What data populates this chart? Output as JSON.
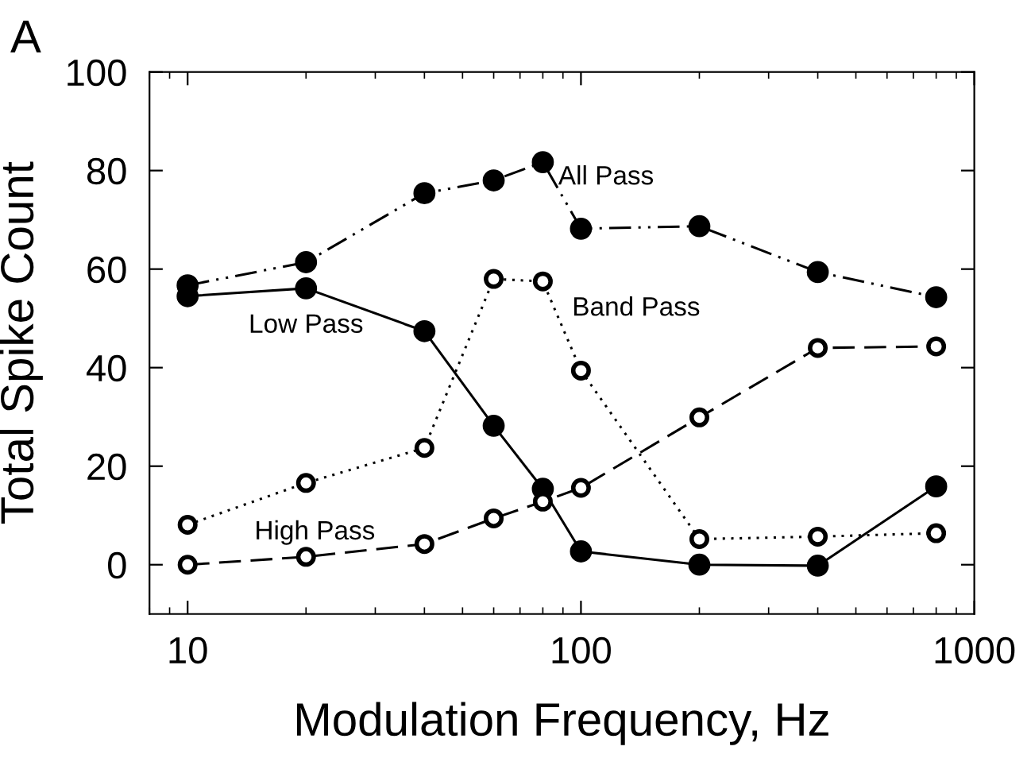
{
  "chart_data": {
    "type": "line",
    "xlabel": "Modulation Frequency, Hz",
    "ylabel": "Total Spike Count",
    "x": [
      10,
      20,
      40,
      60,
      80,
      100,
      200,
      400,
      800
    ],
    "series": [
      {
        "name": "All Pass",
        "color": "#000000",
        "line_style": "dashdot",
        "values": [
          56.7,
          61.4,
          75.4,
          78.0,
          81.7,
          68.2,
          68.7,
          59.4,
          54.3
        ]
      },
      {
        "name": "Low Pass",
        "color": "#000000",
        "line_style": "solid",
        "values": [
          54.5,
          56.1,
          47.4,
          28.2,
          15.4,
          2.7,
          0,
          -0.2,
          15.9
        ]
      },
      {
        "name": "Band Pass",
        "color": "#000000",
        "line_style": "dotted",
        "values": [
          8.1,
          16.6,
          23.7,
          58.0,
          57.5,
          39.4,
          5.2,
          5.7,
          6.4
        ]
      },
      {
        "name": "High Pass",
        "color": "#000000",
        "line_style": "dashed",
        "values": [
          0,
          1.6,
          4.2,
          9.4,
          12.8,
          15.6,
          29.9,
          44.0,
          44.3
        ]
      }
    ],
    "marker": "circle",
    "log": "x",
    "grid": false,
    "legend": false,
    "xlim": [
      8,
      1000
    ],
    "xticks": [
      10,
      100,
      1000
    ],
    "ylim": [
      -10,
      100
    ],
    "yticks": [
      0,
      20,
      40,
      60,
      80,
      100
    ],
    "annotations": [
      "A"
    ]
  }
}
